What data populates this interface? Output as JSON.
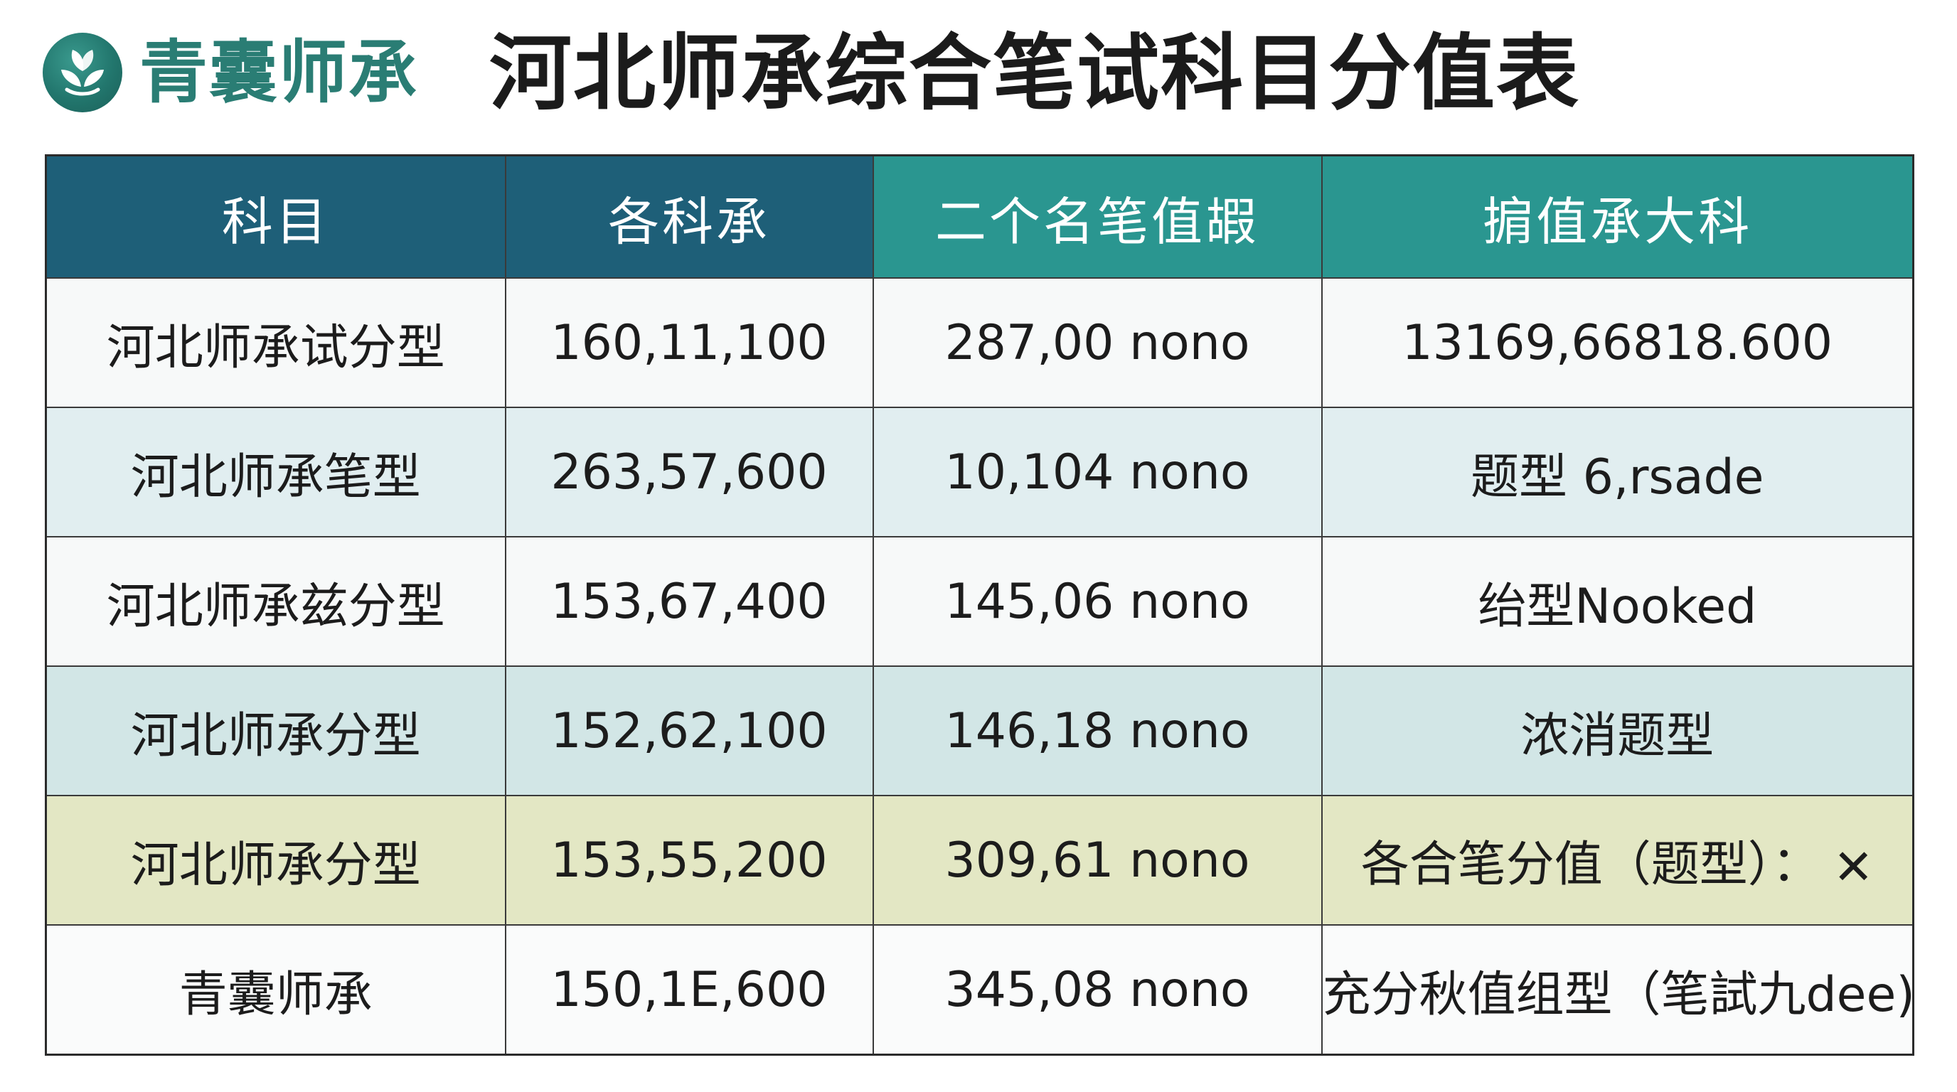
{
  "logo": {
    "brand_name": "青囊师承",
    "icon": "leaf-sprout-icon",
    "color": "#2a7d74"
  },
  "page_title": "河北师承综合笔试科目分值表",
  "table": {
    "headers": [
      "科目",
      "各科承",
      "二个名笔值嘏",
      "掮值承大科"
    ],
    "header_colors": [
      "#1e5f78",
      "#1e5f78",
      "#2a9690",
      "#2a9690"
    ],
    "rows": [
      {
        "name": "河北师承试分型",
        "col2": "160,11,100",
        "col3": "287,00 nono",
        "col4": "13169,66818.600"
      },
      {
        "name": "河北师承笔型",
        "col2": "263,57,600",
        "col3": "10,104 nono",
        "col4": "题型 6,rsade"
      },
      {
        "name": "河北师承兹分型",
        "col2": "153,67,400",
        "col3": "145,06 nono",
        "col4": "绐型Nooked"
      },
      {
        "name": "河北师承分型",
        "col2": "152,62,100",
        "col3": "146,18 nono",
        "col4": "浓消题型"
      },
      {
        "name": "河北师承分型",
        "col2": "153,55,200",
        "col3": "309,61 nono",
        "col4": "各合笔分值（题型）："
      },
      {
        "name": "青囊师承",
        "col2": "150,1E,600",
        "col3": "345,08 nono",
        "col4": "充分秋值组型（笔試九dee)"
      }
    ],
    "close_icon": "close-x-icon",
    "close_glyph": "✕"
  }
}
